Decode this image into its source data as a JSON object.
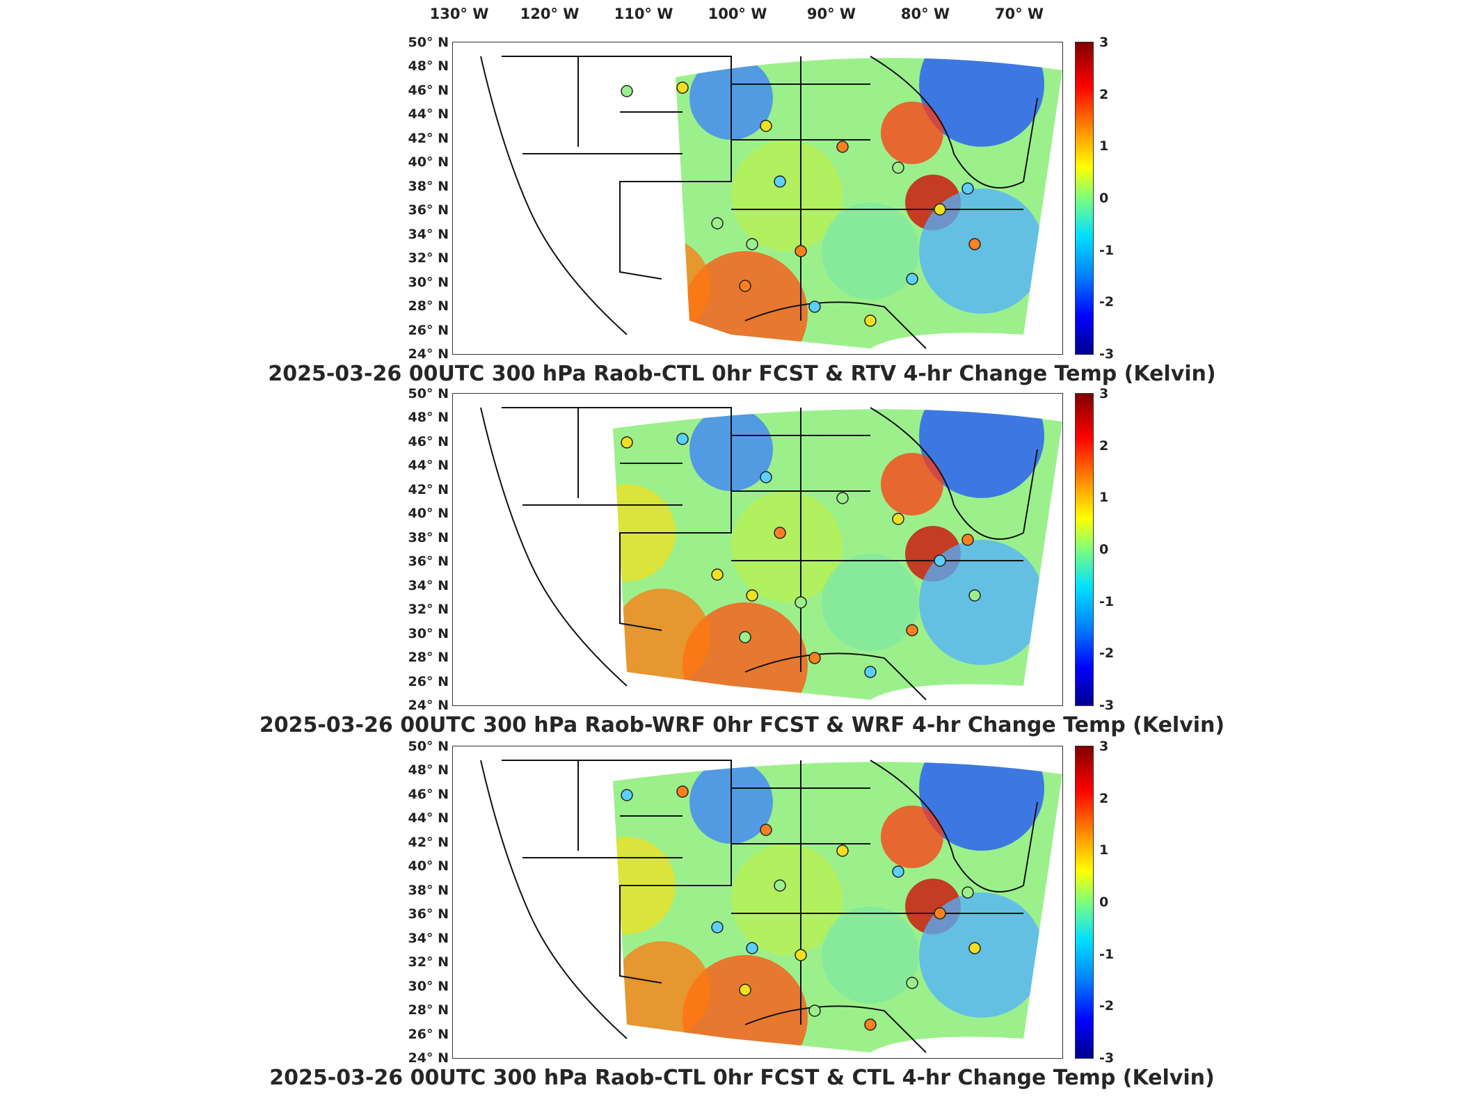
{
  "lon_labels": [
    "130° W",
    "120° W",
    "110° W",
    "100° W",
    "90° W",
    "80° W",
    "70° W"
  ],
  "lat_labels": [
    "50° N",
    "48° N",
    "46° N",
    "44° N",
    "42° N",
    "40° N",
    "38° N",
    "36° N",
    "34° N",
    "32° N",
    "30° N",
    "28° N",
    "26° N",
    "24° N"
  ],
  "colorbar_ticks": [
    "3",
    "2",
    "1",
    "0",
    "-1",
    "-2",
    "-3"
  ],
  "colorbar_colors": [
    "#800000",
    "#ff0000",
    "#ffa000",
    "#ffff00",
    "#7cff7c",
    "#00e0ff",
    "#0080ff",
    "#0000ff",
    "#00008f"
  ],
  "panels": [
    {
      "title": "2025-03-26 00UTC 300 hPa Raob-CTL 0hr FCST & RTV 4-hr Change Temp (Kelvin)"
    },
    {
      "title": "2025-03-26 00UTC 300 hPa Raob-WRF 0hr FCST & WRF 4-hr Change Temp (Kelvin)"
    },
    {
      "title": "2025-03-26 00UTC 300 hPa Raob-CTL 0hr FCST & CTL 4-hr Change Temp (Kelvin)"
    }
  ]
}
